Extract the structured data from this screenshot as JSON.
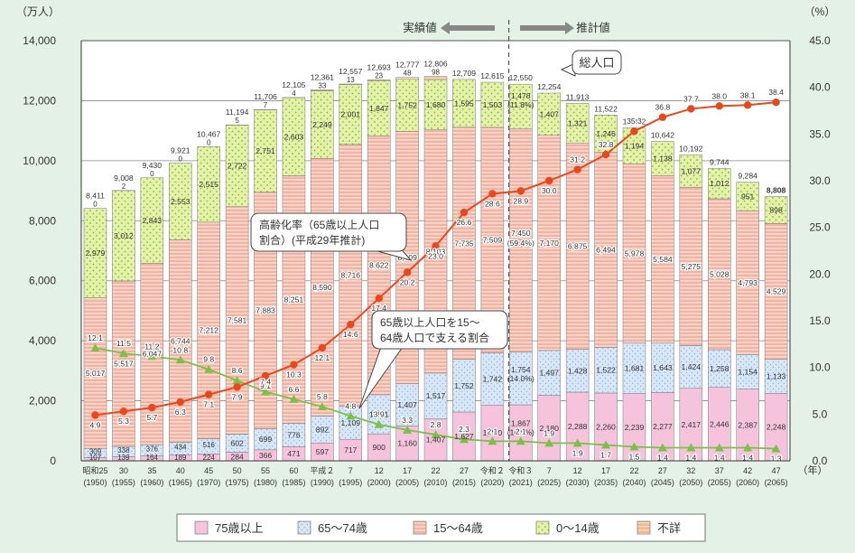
{
  "chart_data": {
    "type": "stacked-bar-with-lines",
    "y_left_unit": "（万人）",
    "y_right_unit": "（%）",
    "x_unit": "（年）",
    "y_left_ticks": [
      "0",
      "2,000",
      "4,000",
      "6,000",
      "8,000",
      "10,000",
      "12,000",
      "14,000"
    ],
    "y_right_ticks": [
      "0.0",
      "5.0",
      "10.0",
      "15.0",
      "20.0",
      "25.0",
      "30.0",
      "35.0",
      "40.0",
      "45.0"
    ],
    "ylim_left": [
      0,
      14000
    ],
    "ylim_right": [
      0,
      45
    ],
    "actual_label": "実績値",
    "projected_label": "推計値",
    "callout_total": "総人口",
    "callout_aging": [
      "高齢化率（65歳以上人口",
      "割合）(平成29年推計)"
    ],
    "callout_support": [
      "65歳以上人口を15～",
      "64歳人口で支える割合"
    ],
    "legend": [
      "75歳以上",
      "65～74歳",
      "15～64歳",
      "0～14歳",
      "不詳"
    ],
    "colors": {
      "age75": "#f6c3dc",
      "age65_74": "#d7e7f7",
      "age15_64": "#f3b3a2",
      "age0_14": "#e4f2a8",
      "unknown": "#f5b78c",
      "line_aging": "#e8481e",
      "line_support": "#7cc04a",
      "text": "#333333"
    },
    "categories": [
      {
        "era": "昭和25",
        "year": "(1950)",
        "total": "8,411",
        "v75": 107,
        "v65": 309,
        "v15": 5017,
        "v0": 2979,
        "vu": 0,
        "l75": "107",
        "l65": "309",
        "l15": "5,017",
        "l0": "2,979",
        "lu": "0",
        "aging": 4.9,
        "aging_label": "4.9",
        "support": 12.1,
        "support_label": "12.1"
      },
      {
        "era": "30",
        "year": "(1955)",
        "total": "9,008",
        "v75": 139,
        "v65": 338,
        "v15": 5517,
        "v0": 3012,
        "vu": 2,
        "l75": "139",
        "l65": "338",
        "l15": "5,517",
        "l0": "3,012",
        "lu": "2",
        "aging": 5.3,
        "aging_label": "5.3",
        "support": 11.5,
        "support_label": "11.5"
      },
      {
        "era": "35",
        "year": "(1960)",
        "total": "9,430",
        "v75": 164,
        "v65": 376,
        "v15": 6047,
        "v0": 2843,
        "vu": 0,
        "l75": "164",
        "l65": "376",
        "l15": "6,047",
        "l0": "2,843",
        "lu": "0",
        "aging": 5.7,
        "aging_label": "5.7",
        "support": 11.2,
        "support_label": "11.2"
      },
      {
        "era": "40",
        "year": "(1965)",
        "total": "9,921",
        "v75": 189,
        "v65": 434,
        "v15": 6744,
        "v0": 2553,
        "vu": 0,
        "l75": "189",
        "l65": "434",
        "l15": "6,744",
        "l0": "2,553",
        "lu": "0",
        "aging": 6.3,
        "aging_label": "6.3",
        "support": 10.8,
        "support_label": "10.8"
      },
      {
        "era": "45",
        "year": "(1970)",
        "total": "10,467",
        "v75": 224,
        "v65": 516,
        "v15": 7212,
        "v0": 2515,
        "vu": 0,
        "l75": "224",
        "l65": "516",
        "l15": "7,212",
        "l0": "2,515",
        "lu": "0",
        "aging": 7.1,
        "aging_label": "7.1",
        "support": 9.8,
        "support_label": "9.8"
      },
      {
        "era": "50",
        "year": "(1975)",
        "total": "11,194",
        "v75": 284,
        "v65": 602,
        "v15": 7581,
        "v0": 2722,
        "vu": 5,
        "l75": "284",
        "l65": "602",
        "l15": "7,581",
        "l0": "2,722",
        "lu": "5",
        "aging": 7.9,
        "aging_label": "7.9",
        "support": 8.6,
        "support_label": "8.6"
      },
      {
        "era": "55",
        "year": "(1980)",
        "total": "11,706",
        "v75": 366,
        "v65": 699,
        "v15": 7883,
        "v0": 2751,
        "vu": 7,
        "l75": "366",
        "l65": "699",
        "l15": "7,883",
        "l0": "2,751",
        "lu": "7",
        "aging": 9.1,
        "aging_label": "9.1",
        "support": 7.4,
        "support_label": "7.4"
      },
      {
        "era": "60",
        "year": "(1985)",
        "total": "12,105",
        "v75": 471,
        "v65": 776,
        "v15": 8251,
        "v0": 2603,
        "vu": 4,
        "l75": "471",
        "l65": "776",
        "l15": "8,251",
        "l0": "2,603",
        "lu": "4",
        "aging": 10.3,
        "aging_label": "10.3",
        "support": 6.6,
        "support_label": "6.6"
      },
      {
        "era": "平成２",
        "year": "(1990)",
        "total": "12,361",
        "v75": 597,
        "v65": 892,
        "v15": 8590,
        "v0": 2249,
        "vu": 33,
        "l75": "597",
        "l65": "892",
        "l15": "8,590",
        "l0": "2,249",
        "lu": "33",
        "aging": 12.1,
        "aging_label": "12.1",
        "support": 5.8,
        "support_label": "5.8"
      },
      {
        "era": "7",
        "year": "(1995)",
        "total": "12,557",
        "v75": 717,
        "v65": 1109,
        "v15": 8716,
        "v0": 2001,
        "vu": 13,
        "l75": "717",
        "l65": "1,109",
        "l15": "8,716",
        "l0": "2,001",
        "lu": "13",
        "aging": 14.6,
        "aging_label": "14.6",
        "support": 4.8,
        "support_label": "4.8"
      },
      {
        "era": "12",
        "year": "(2000)",
        "total": "12,693",
        "v75": 900,
        "v65": 1301,
        "v15": 8622,
        "v0": 1847,
        "vu": 23,
        "l75": "900",
        "l65": "1,301",
        "l15": "8,622",
        "l0": "1,847",
        "lu": "23",
        "aging": 17.4,
        "aging_label": "17.4",
        "support": 3.9,
        "support_label": "3.9"
      },
      {
        "era": "17",
        "year": "(2005)",
        "total": "12,777",
        "v75": 1160,
        "v65": 1407,
        "v15": 8409,
        "v0": 1752,
        "vu": 48,
        "l75": "1,160",
        "l65": "1,407",
        "l15": "8,409",
        "l0": "1,752",
        "lu": "48",
        "aging": 20.2,
        "aging_label": "20.2",
        "support": 3.3,
        "support_label": "3.3"
      },
      {
        "era": "22",
        "year": "(2010)",
        "total": "12,806",
        "v75": 1407,
        "v65": 1517,
        "v15": 8103,
        "v0": 1680,
        "vu": 98,
        "l75": "1,407",
        "l65": "1,517",
        "l15": "8,103",
        "l0": "1,680",
        "lu": "98",
        "aging": 23.0,
        "aging_label": "23.0",
        "support": 2.8,
        "support_label": "2.8"
      },
      {
        "era": "27",
        "year": "(2015)",
        "total": "12,709",
        "v75": 1627,
        "v65": 1752,
        "v15": 7735,
        "v0": 1595,
        "vu": 0,
        "l75": "1,627",
        "l65": "1,752",
        "l15": "7,735",
        "l0": "1,595",
        "lu": "",
        "aging": 26.6,
        "aging_label": "26.6",
        "support": 2.3,
        "support_label": "2.3"
      },
      {
        "era": "令和２",
        "year": "(2020)",
        "total": "12,615",
        "v75": 1860,
        "v65": 1742,
        "v15": 7509,
        "v0": 1503,
        "vu": 0,
        "l75": "1,860",
        "l65": "1,742",
        "l15": "7,509",
        "l0": "1,503",
        "lu": "",
        "aging": 28.6,
        "aging_label": "28.6",
        "support": 2.1,
        "support_label": "2.1"
      },
      {
        "era": "令和３",
        "year": "(2021)",
        "total": "12,550",
        "v75": 1867,
        "v65": 1754,
        "v15": 7450,
        "v0": 1478,
        "vu": 0,
        "l75": "1,867",
        "l75b": "(14.9%)",
        "l65": "1,754",
        "l65b": "(14.0%)",
        "l15": "7,450",
        "l15b": "(59.4%)",
        "l0": "1,478",
        "l0b": "(11.8%)",
        "lu": "",
        "aging": 28.9,
        "aging_label": "28.9",
        "support": 2.1,
        "support_label": "2.1"
      },
      {
        "era": "7",
        "year": "(2025)",
        "total": "12,254",
        "v75": 2180,
        "v65": 1497,
        "v15": 7170,
        "v0": 1407,
        "vu": 0,
        "l75": "2,180",
        "l65": "1,497",
        "l15": "7,170",
        "l0": "1,407",
        "lu": "",
        "aging": 30.0,
        "aging_label": "30.0",
        "support": 1.9,
        "support_label": "1.9"
      },
      {
        "era": "12",
        "year": "(2030)",
        "total": "11,913",
        "v75": 2288,
        "v65": 1428,
        "v15": 6875,
        "v0": 1321,
        "vu": 0,
        "l75": "2,288",
        "l65": "1,428",
        "l15": "6,875",
        "l0": "1,321",
        "lu": "",
        "aging": 31.2,
        "aging_label": "31.2",
        "support": 1.9,
        "support_label": "1.9"
      },
      {
        "era": "17",
        "year": "(2035)",
        "total": "11,522",
        "v75": 2260,
        "v65": 1522,
        "v15": 6494,
        "v0": 1246,
        "vu": 0,
        "l75": "2,260",
        "l65": "1,522",
        "l15": "6,494",
        "l0": "1,246",
        "lu": "",
        "aging": 32.8,
        "aging_label": "32.8",
        "support": 1.7,
        "support_label": "1.7"
      },
      {
        "era": "22",
        "year": "(2040)",
        "total": "11,092",
        "v75": 2239,
        "v65": 1681,
        "v15": 5978,
        "v0": 1194,
        "vu": 0,
        "l75": "2,239",
        "l65": "1,681",
        "l15": "5,978",
        "l0": "1,194",
        "lu": "",
        "aging": 35.3,
        "aging_label": "35.3",
        "support": 1.5,
        "support_label": "1.5"
      },
      {
        "era": "27",
        "year": "(2045)",
        "total": "10,642",
        "v75": 2277,
        "v65": 1643,
        "v15": 5584,
        "v0": 1138,
        "vu": 0,
        "l75": "2,277",
        "l65": "1,643",
        "l15": "5,584",
        "l0": "1,138",
        "lu": "",
        "aging": 36.8,
        "aging_label": "36.8",
        "support": 1.4,
        "support_label": "1.4"
      },
      {
        "era": "32",
        "year": "(2050)",
        "total": "10,192",
        "v75": 2417,
        "v65": 1424,
        "v15": 5275,
        "v0": 1077,
        "vu": 0,
        "l75": "2,417",
        "l65": "1,424",
        "l15": "5,275",
        "l0": "1,077",
        "lu": "",
        "aging": 37.7,
        "aging_label": "37.7",
        "support": 1.4,
        "support_label": "1.4"
      },
      {
        "era": "37",
        "year": "(2055)",
        "total": "9,744",
        "v75": 2446,
        "v65": 1258,
        "v15": 5028,
        "v0": 1012,
        "vu": 0,
        "l75": "2,446",
        "l65": "1,258",
        "l15": "5,028",
        "l0": "1,012",
        "lu": "",
        "aging": 38.0,
        "aging_label": "38.0",
        "support": 1.4,
        "support_label": "1.4"
      },
      {
        "era": "42",
        "year": "(2060)",
        "total": "9,284",
        "v75": 2387,
        "v65": 1154,
        "v15": 4793,
        "v0": 951,
        "vu": 0,
        "l75": "2,387",
        "l65": "1,154",
        "l15": "4,793",
        "l0": "951",
        "lu": "",
        "aging": 38.1,
        "aging_label": "38.1",
        "support": 1.4,
        "support_label": "1.4"
      },
      {
        "era": "47",
        "year": "(2065)",
        "total": "8,808",
        "v75": 2248,
        "v65": 1133,
        "v15": 4529,
        "v0": 898,
        "vu": 0,
        "l75": "2,248",
        "l65": "1,133",
        "l15": "4,529",
        "l0": "898",
        "lu": "",
        "aging": 38.4,
        "aging_label": "38.4",
        "support": 1.3,
        "support_label": "1.3"
      }
    ]
  }
}
